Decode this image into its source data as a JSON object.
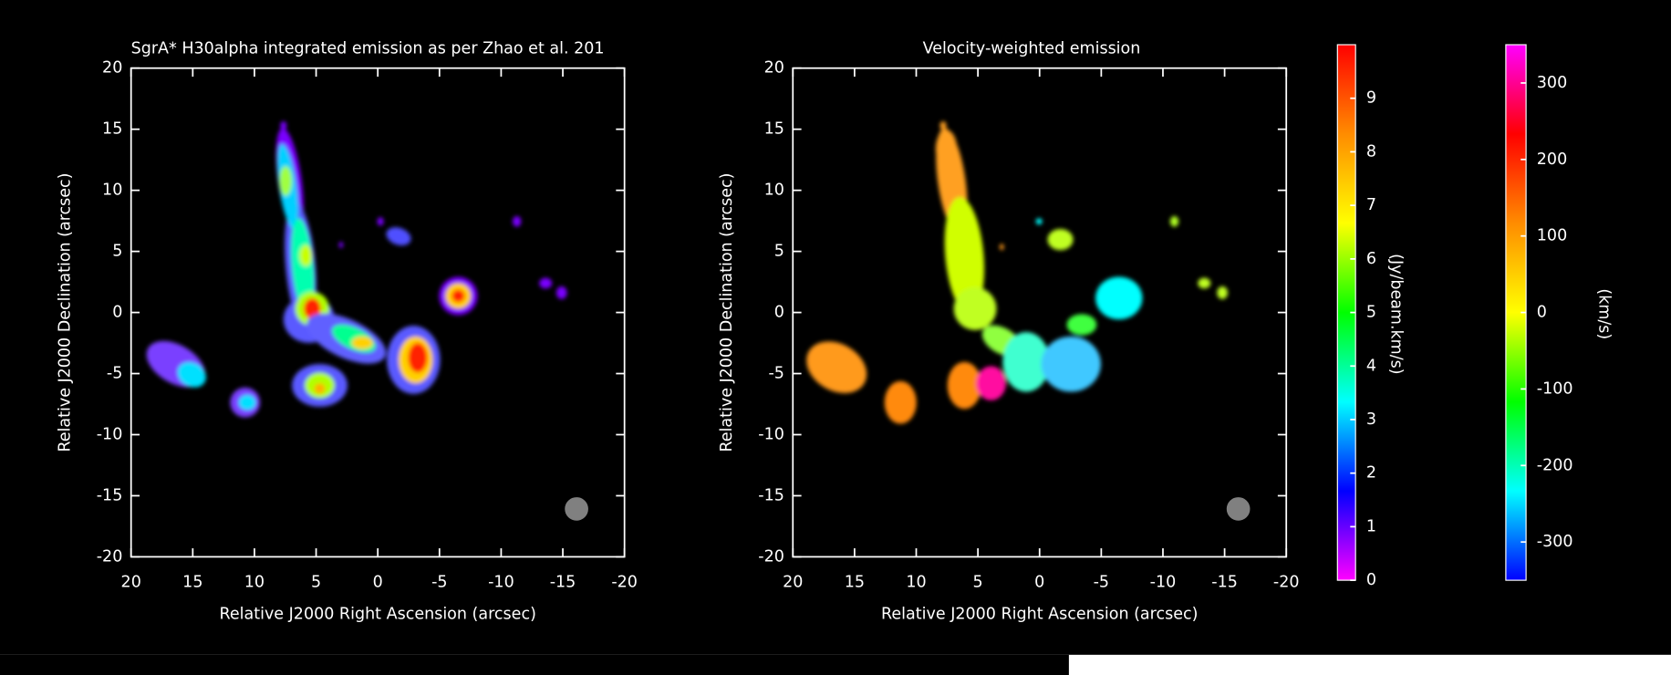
{
  "chart_data": [
    {
      "type": "image",
      "title": "SgrA* H30alpha integrated emission as per Zhao et al. 201",
      "xlabel": "Relative J2000 Right Ascension (arcsec)",
      "ylabel": "Relative J2000 Declination (arcsec)",
      "xlim": [
        20,
        -20
      ],
      "ylim": [
        -20,
        20
      ],
      "xticks": [
        20,
        15,
        10,
        5,
        0,
        -5,
        -10,
        -15,
        -20
      ],
      "yticks": [
        -20,
        -15,
        -10,
        -5,
        0,
        5,
        10,
        15,
        20
      ],
      "colorbar": {
        "label": "(Jy/beam.km/s)",
        "lim": [
          0,
          10
        ],
        "ticks": [
          0,
          1,
          2,
          3,
          4,
          5,
          6,
          7,
          8,
          9
        ],
        "colors": [
          "#ff00ff",
          "#0000ff",
          "#00ffff",
          "#00ff00",
          "#ffff00",
          "#ff8c00",
          "#ff0000"
        ]
      }
    },
    {
      "type": "image",
      "title": "Velocity-weighted emission",
      "xlabel": "Relative J2000 Right Ascension (arcsec)",
      "ylabel": "Relative J2000 Declination (arcsec)",
      "xlim": [
        20,
        -20
      ],
      "ylim": [
        -20,
        20
      ],
      "xticks": [
        20,
        15,
        10,
        5,
        0,
        -5,
        -10,
        -15,
        -20
      ],
      "yticks": [
        -20,
        -15,
        -10,
        -5,
        0,
        5,
        10,
        15,
        20
      ],
      "colorbar": {
        "label": "(km/s)",
        "lim": [
          -350,
          350
        ],
        "ticks": [
          -300,
          -200,
          -100,
          0,
          100,
          200,
          300
        ],
        "colors": [
          "#0000ff",
          "#00ffff",
          "#00ff00",
          "#ffff00",
          "#ff8c00",
          "#ff0000",
          "#ff00ff"
        ]
      }
    }
  ]
}
